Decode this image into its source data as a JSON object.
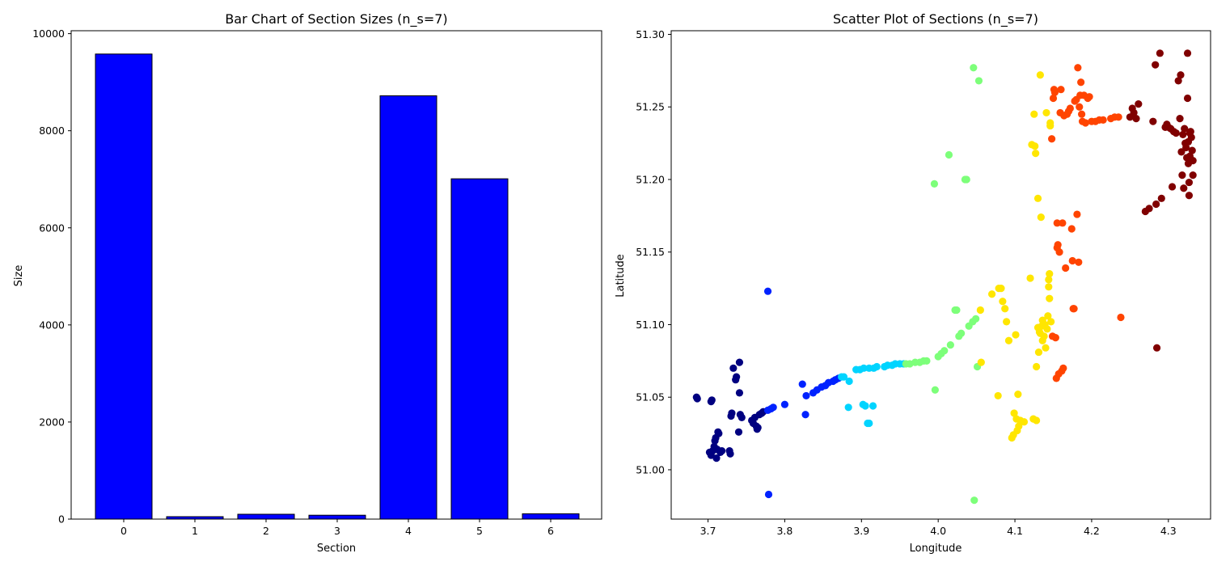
{
  "chart_data": [
    {
      "type": "bar",
      "title": "Bar Chart of Section Sizes (n_s=7)",
      "xlabel": "Section",
      "ylabel": "Size",
      "categories": [
        "0",
        "1",
        "2",
        "3",
        "4",
        "5",
        "6"
      ],
      "values": [
        9580,
        50,
        100,
        80,
        8720,
        7010,
        110
      ],
      "ylim": [
        0,
        10060
      ],
      "yticks": [
        0,
        2000,
        4000,
        6000,
        8000,
        10000
      ],
      "bar_color": "#0000ff",
      "edge_color": "#000000",
      "grid": false
    },
    {
      "type": "scatter",
      "title": "Scatter Plot of Sections (n_s=7)",
      "xlabel": "Longitude",
      "ylabel": "Latitude",
      "xlim": [
        3.652,
        4.355
      ],
      "ylim": [
        50.966,
        51.3025
      ],
      "xticks": [
        "3.7",
        "3.8",
        "3.9",
        "4.0",
        "4.1",
        "4.2",
        "4.3"
      ],
      "yticks": [
        "51.00",
        "51.05",
        "51.10",
        "51.15",
        "51.20",
        "51.25",
        "51.30"
      ],
      "grid": false,
      "series": [
        {
          "color": "#000080",
          "points": [
            [
              3.685,
              51.05
            ],
            [
              3.686,
              51.049
            ],
            [
              3.705,
              51.048
            ],
            [
              3.704,
              51.047
            ],
            [
              3.702,
              51.012
            ],
            [
              3.704,
              51.01
            ],
            [
              3.706,
              51.013
            ],
            [
              3.708,
              51.016
            ],
            [
              3.709,
              51.02
            ],
            [
              3.71,
              51.022
            ],
            [
              3.711,
              51.008
            ],
            [
              3.712,
              51.014
            ],
            [
              3.713,
              51.026
            ],
            [
              3.714,
              51.025
            ],
            [
              3.716,
              51.012
            ],
            [
              3.718,
              51.013
            ],
            [
              3.728,
              51.013
            ],
            [
              3.729,
              51.011
            ],
            [
              3.73,
              51.037
            ],
            [
              3.731,
              51.039
            ],
            [
              3.733,
              51.07
            ],
            [
              3.736,
              51.062
            ],
            [
              3.737,
              51.064
            ],
            [
              3.74,
              51.026
            ],
            [
              3.741,
              51.053
            ],
            [
              3.741,
              51.074
            ],
            [
              3.742,
              51.038
            ],
            [
              3.744,
              51.036
            ],
            [
              3.757,
              51.034
            ],
            [
              3.759,
              51.032
            ],
            [
              3.761,
              51.036
            ],
            [
              3.763,
              51.03
            ],
            [
              3.764,
              51.028
            ],
            [
              3.765,
              51.029
            ],
            [
              3.767,
              51.038
            ],
            [
              3.77,
              51.039
            ],
            [
              3.772,
              51.04
            ]
          ]
        },
        {
          "color": "#0022ff",
          "points": [
            [
              3.778,
              51.123
            ],
            [
              3.779,
              50.983
            ],
            [
              3.778,
              51.041
            ],
            [
              3.782,
              51.042
            ],
            [
              3.785,
              51.043
            ],
            [
              3.8,
              51.045
            ],
            [
              3.823,
              51.059
            ],
            [
              3.827,
              51.038
            ],
            [
              3.828,
              51.051
            ],
            [
              3.837,
              51.053
            ],
            [
              3.842,
              51.055
            ],
            [
              3.848,
              51.057
            ],
            [
              3.853,
              51.058
            ],
            [
              3.857,
              51.06
            ],
            [
              3.863,
              51.061
            ],
            [
              3.866,
              51.062
            ],
            [
              3.87,
              51.063
            ]
          ]
        },
        {
          "color": "#00d4ff",
          "points": [
            [
              3.874,
              51.064
            ],
            [
              3.877,
              51.064
            ],
            [
              3.883,
              51.043
            ],
            [
              3.884,
              51.061
            ],
            [
              3.893,
              51.069
            ],
            [
              3.898,
              51.069
            ],
            [
              3.902,
              51.045
            ],
            [
              3.903,
              51.07
            ],
            [
              3.905,
              51.044
            ],
            [
              3.908,
              51.032
            ],
            [
              3.91,
              51.032
            ],
            [
              3.91,
              51.07
            ],
            [
              3.915,
              51.044
            ],
            [
              3.916,
              51.07
            ],
            [
              3.92,
              51.071
            ],
            [
              3.93,
              51.071
            ],
            [
              3.934,
              51.072
            ],
            [
              3.94,
              51.072
            ],
            [
              3.944,
              51.073
            ],
            [
              3.95,
              51.073
            ],
            [
              3.955,
              51.073
            ]
          ]
        },
        {
          "color": "#7dff7a",
          "points": [
            [
              3.958,
              51.073
            ],
            [
              3.963,
              51.073
            ],
            [
              3.97,
              51.074
            ],
            [
              3.976,
              51.074
            ],
            [
              3.981,
              51.075
            ],
            [
              3.985,
              51.075
            ],
            [
              3.995,
              51.197
            ],
            [
              3.996,
              51.055
            ],
            [
              4.0,
              51.078
            ],
            [
              4.004,
              51.08
            ],
            [
              4.008,
              51.082
            ],
            [
              4.014,
              51.217
            ],
            [
              4.016,
              51.086
            ],
            [
              4.022,
              51.11
            ],
            [
              4.024,
              51.11
            ],
            [
              4.027,
              51.092
            ],
            [
              4.03,
              51.094
            ],
            [
              4.035,
              51.2
            ],
            [
              4.037,
              51.2
            ],
            [
              4.04,
              51.099
            ],
            [
              4.045,
              51.102
            ],
            [
              4.046,
              51.277
            ],
            [
              4.047,
              50.979
            ],
            [
              4.049,
              51.104
            ],
            [
              4.051,
              51.071
            ],
            [
              4.053,
              51.268
            ]
          ]
        },
        {
          "color": "#ffe600",
          "points": [
            [
              4.055,
              51.11
            ],
            [
              4.056,
              51.074
            ],
            [
              4.07,
              51.121
            ],
            [
              4.078,
              51.051
            ],
            [
              4.079,
              51.125
            ],
            [
              4.082,
              51.125
            ],
            [
              4.084,
              51.116
            ],
            [
              4.087,
              51.111
            ],
            [
              4.089,
              51.102
            ],
            [
              4.092,
              51.089
            ],
            [
              4.096,
              51.022
            ],
            [
              4.098,
              51.024
            ],
            [
              4.099,
              51.039
            ],
            [
              4.101,
              51.093
            ],
            [
              4.102,
              51.035
            ],
            [
              4.103,
              51.027
            ],
            [
              4.104,
              51.052
            ],
            [
              4.105,
              51.03
            ],
            [
              4.107,
              51.034
            ],
            [
              4.112,
              51.033
            ],
            [
              4.12,
              51.132
            ],
            [
              4.122,
              51.224
            ],
            [
              4.124,
              51.035
            ],
            [
              4.125,
              51.245
            ],
            [
              4.126,
              51.223
            ],
            [
              4.127,
              51.218
            ],
            [
              4.128,
              51.034
            ],
            [
              4.13,
              51.187
            ],
            [
              4.131,
              51.081
            ],
            [
              4.132,
              51.095
            ],
            [
              4.133,
              51.272
            ],
            [
              4.134,
              51.174
            ],
            [
              4.135,
              51.099
            ],
            [
              4.136,
              51.089
            ],
            [
              4.138,
              51.092
            ],
            [
              4.139,
              51.1
            ],
            [
              4.14,
              51.084
            ],
            [
              4.141,
              51.246
            ],
            [
              4.142,
              51.097
            ],
            [
              4.143,
              51.106
            ],
            [
              4.144,
              51.126
            ],
            [
              4.144,
              51.131
            ],
            [
              4.145,
              51.135
            ],
            [
              4.145,
              51.118
            ],
            [
              4.146,
              51.239
            ],
            [
              4.146,
              51.237
            ],
            [
              4.147,
              51.102
            ],
            [
              4.128,
              51.071
            ],
            [
              4.13,
              51.098
            ],
            [
              4.133,
              51.094
            ],
            [
              4.136,
              51.103
            ]
          ]
        },
        {
          "color": "#ff4400",
          "points": [
            [
              4.148,
              51.228
            ],
            [
              4.149,
              51.092
            ],
            [
              4.15,
              51.256
            ],
            [
              4.151,
              51.262
            ],
            [
              4.152,
              51.26
            ],
            [
              4.153,
              51.091
            ],
            [
              4.154,
              51.063
            ],
            [
              4.155,
              51.17
            ],
            [
              4.155,
              51.153
            ],
            [
              4.156,
              51.155
            ],
            [
              4.157,
              51.066
            ],
            [
              4.158,
              51.15
            ],
            [
              4.159,
              51.246
            ],
            [
              4.16,
              51.262
            ],
            [
              4.161,
              51.068
            ],
            [
              4.162,
              51.17
            ],
            [
              4.163,
              51.07
            ],
            [
              4.164,
              51.244
            ],
            [
              4.166,
              51.139
            ],
            [
              4.168,
              51.245
            ],
            [
              4.17,
              51.247
            ],
            [
              4.172,
              51.249
            ],
            [
              4.174,
              51.166
            ],
            [
              4.175,
              51.144
            ],
            [
              4.176,
              51.111
            ],
            [
              4.177,
              51.111
            ],
            [
              4.178,
              51.254
            ],
            [
              4.18,
              51.255
            ],
            [
              4.181,
              51.176
            ],
            [
              4.182,
              51.277
            ],
            [
              4.183,
              51.143
            ],
            [
              4.184,
              51.25
            ],
            [
              4.185,
              51.258
            ],
            [
              4.186,
              51.267
            ],
            [
              4.187,
              51.245
            ],
            [
              4.188,
              51.24
            ],
            [
              4.19,
              51.258
            ],
            [
              4.192,
              51.239
            ],
            [
              4.195,
              51.256
            ],
            [
              4.197,
              51.257
            ],
            [
              4.2,
              51.24
            ],
            [
              4.205,
              51.24
            ],
            [
              4.21,
              51.241
            ],
            [
              4.215,
              51.241
            ],
            [
              4.225,
              51.242
            ],
            [
              4.23,
              51.243
            ],
            [
              4.235,
              51.243
            ],
            [
              4.238,
              51.105
            ]
          ]
        },
        {
          "color": "#800000",
          "points": [
            [
              4.25,
              51.243
            ],
            [
              4.253,
              51.249
            ],
            [
              4.255,
              51.246
            ],
            [
              4.258,
              51.242
            ],
            [
              4.261,
              51.252
            ],
            [
              4.27,
              51.178
            ],
            [
              4.275,
              51.18
            ],
            [
              4.28,
              51.24
            ],
            [
              4.283,
              51.279
            ],
            [
              4.284,
              51.183
            ],
            [
              4.285,
              51.084
            ],
            [
              4.289,
              51.287
            ],
            [
              4.291,
              51.187
            ],
            [
              4.296,
              51.236
            ],
            [
              4.298,
              51.238
            ],
            [
              4.3,
              51.236
            ],
            [
              4.303,
              51.235
            ],
            [
              4.305,
              51.195
            ],
            [
              4.307,
              51.233
            ],
            [
              4.31,
              51.232
            ],
            [
              4.313,
              51.268
            ],
            [
              4.315,
              51.242
            ],
            [
              4.316,
              51.272
            ],
            [
              4.317,
              51.219
            ],
            [
              4.318,
              51.203
            ],
            [
              4.319,
              51.231
            ],
            [
              4.32,
              51.194
            ],
            [
              4.321,
              51.235
            ],
            [
              4.322,
              51.225
            ],
            [
              4.323,
              51.222
            ],
            [
              4.324,
              51.215
            ],
            [
              4.325,
              51.256
            ],
            [
              4.325,
              51.287
            ],
            [
              4.326,
              51.211
            ],
            [
              4.327,
              51.198
            ],
            [
              4.327,
              51.189
            ],
            [
              4.328,
              51.232
            ],
            [
              4.329,
              51.233
            ],
            [
              4.33,
              51.229
            ],
            [
              4.331,
              51.22
            ],
            [
              4.332,
              51.213
            ],
            [
              4.332,
              51.203
            ],
            [
              4.326,
              51.226
            ],
            [
              4.328,
              51.216
            ]
          ]
        }
      ]
    }
  ]
}
